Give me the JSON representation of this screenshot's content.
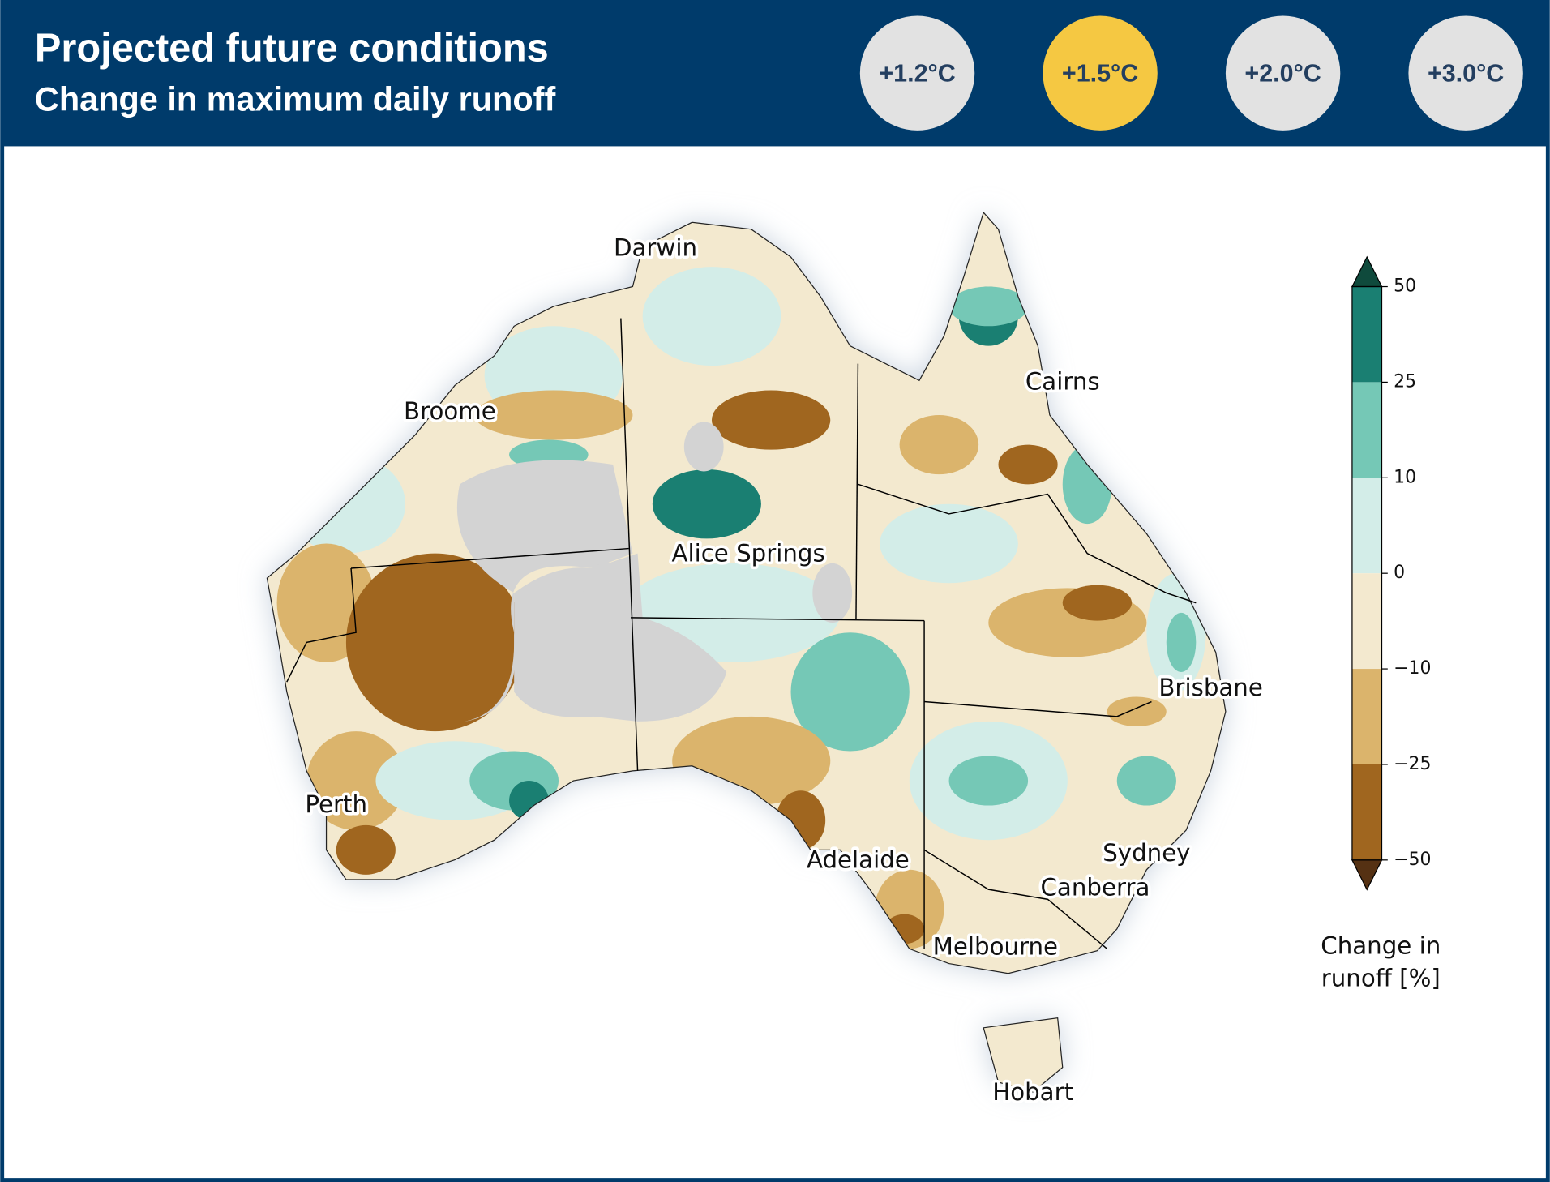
{
  "header": {
    "title": "Projected future conditions",
    "subtitle": "Change in maximum daily runoff"
  },
  "scenarios": [
    {
      "label": "+1.2°C",
      "selected": false
    },
    {
      "label": "+1.5°C",
      "selected": true
    },
    {
      "label": "+2.0°C",
      "selected": false
    },
    {
      "label": "+3.0°C",
      "selected": false
    }
  ],
  "map": {
    "cities": [
      {
        "name": "Darwin"
      },
      {
        "name": "Broome"
      },
      {
        "name": "Cairns"
      },
      {
        "name": "Alice Springs"
      },
      {
        "name": "Brisbane"
      },
      {
        "name": "Perth"
      },
      {
        "name": "Sydney"
      },
      {
        "name": "Adelaide"
      },
      {
        "name": "Canberra"
      },
      {
        "name": "Melbourne"
      },
      {
        "name": "Hobart"
      }
    ]
  },
  "colorbar": {
    "ticks": [
      50,
      25,
      10,
      0,
      {
        "value": -10,
        "label": "−10"
      },
      {
        "value": -25,
        "label": "−25"
      },
      {
        "value": -50,
        "label": "−50"
      }
    ],
    "colors": [
      "#1a7f72",
      "#75c8b6",
      "#d3ede8",
      "#f3e9cf",
      "#dbb46c",
      "#a0661f"
    ],
    "extend_colors": [
      "#0f4a3c",
      "#553113"
    ],
    "label": [
      "Change in",
      "runoff [%]"
    ]
  }
}
